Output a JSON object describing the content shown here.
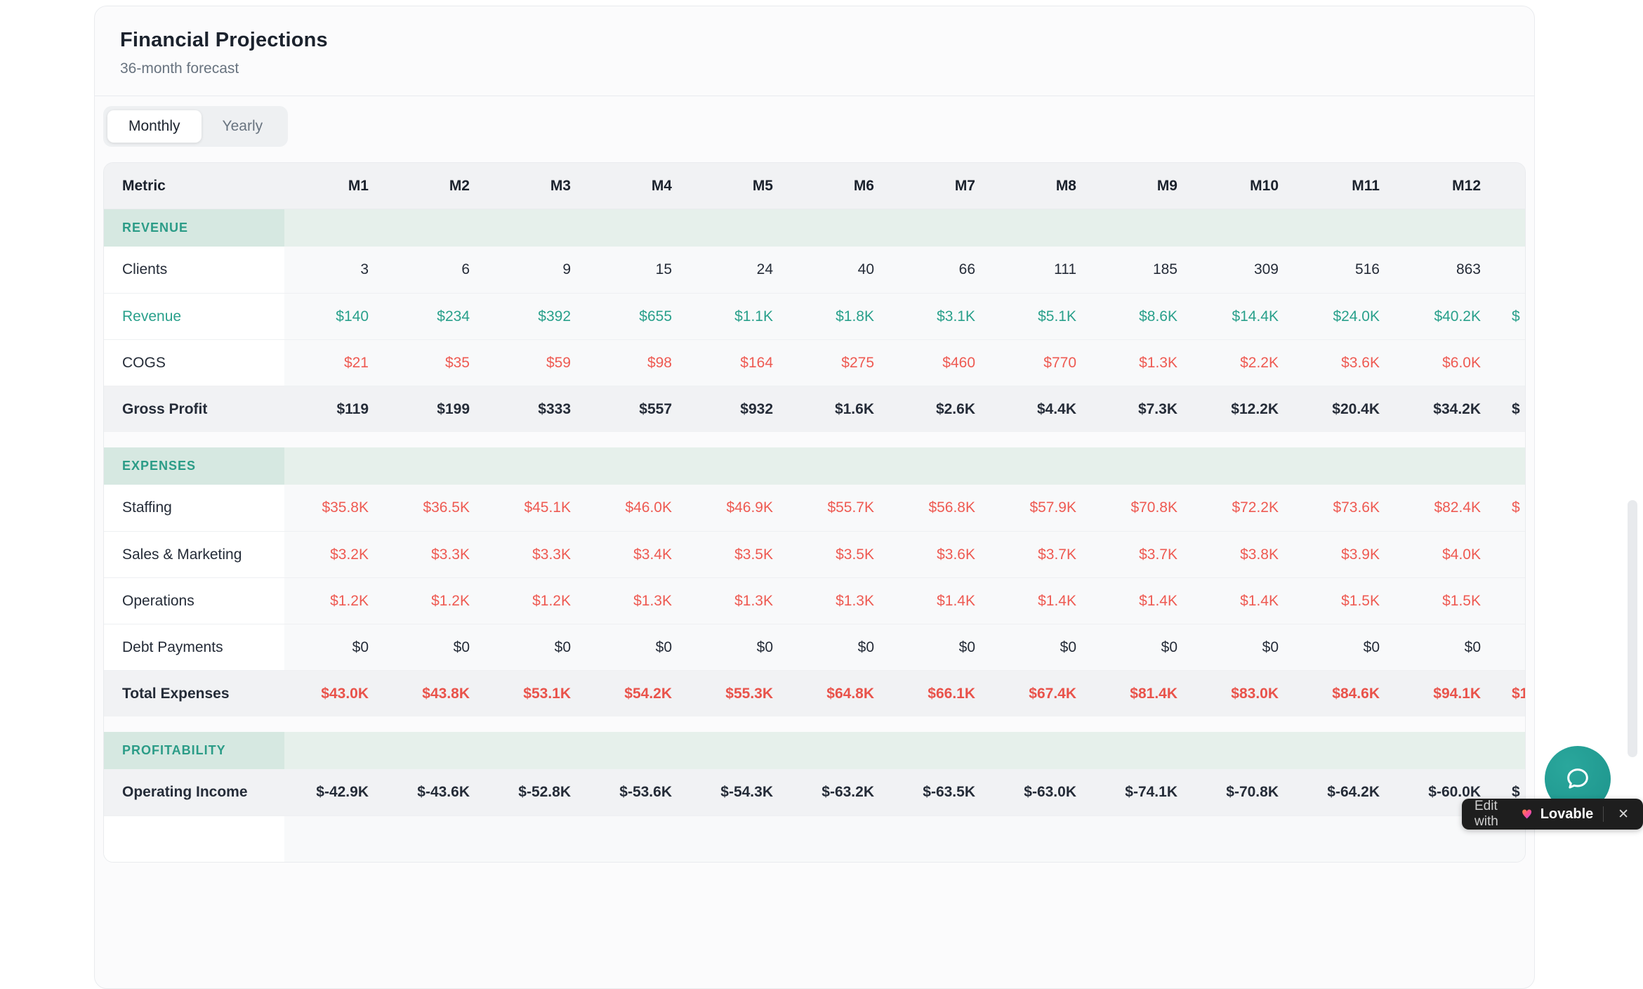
{
  "card": {
    "title": "Financial Projections",
    "subtitle": "36-month forecast"
  },
  "tabs": [
    {
      "label": "Monthly",
      "active": true
    },
    {
      "label": "Yearly",
      "active": false
    }
  ],
  "table": {
    "metric_header": "Metric",
    "months": [
      "M1",
      "M2",
      "M3",
      "M4",
      "M5",
      "M6",
      "M7",
      "M8",
      "M9",
      "M10",
      "M11",
      "M12"
    ],
    "sections": [
      {
        "label": "REVENUE",
        "rows": [
          {
            "label": "Clients",
            "style": "plain",
            "values": [
              "3",
              "6",
              "9",
              "15",
              "24",
              "40",
              "66",
              "111",
              "185",
              "309",
              "516",
              "863"
            ],
            "m13": ""
          },
          {
            "label": "Revenue",
            "style": "teal",
            "values": [
              "$140",
              "$234",
              "$392",
              "$655",
              "$1.1K",
              "$1.8K",
              "$3.1K",
              "$5.1K",
              "$8.6K",
              "$14.4K",
              "$24.0K",
              "$40.2K"
            ],
            "m13": "$"
          },
          {
            "label": "COGS",
            "style": "red",
            "values": [
              "$21",
              "$35",
              "$59",
              "$98",
              "$164",
              "$275",
              "$460",
              "$770",
              "$1.3K",
              "$2.2K",
              "$3.6K",
              "$6.0K"
            ],
            "m13": ""
          },
          {
            "label": "Gross Profit",
            "style": "bold",
            "values": [
              "$119",
              "$199",
              "$333",
              "$557",
              "$932",
              "$1.6K",
              "$2.6K",
              "$4.4K",
              "$7.3K",
              "$12.2K",
              "$20.4K",
              "$34.2K"
            ],
            "m13": "$"
          }
        ]
      },
      {
        "label": "EXPENSES",
        "rows": [
          {
            "label": "Staffing",
            "style": "red",
            "values": [
              "$35.8K",
              "$36.5K",
              "$45.1K",
              "$46.0K",
              "$46.9K",
              "$55.7K",
              "$56.8K",
              "$57.9K",
              "$70.8K",
              "$72.2K",
              "$73.6K",
              "$82.4K"
            ],
            "m13": "$"
          },
          {
            "label": "Sales & Marketing",
            "style": "red",
            "values": [
              "$3.2K",
              "$3.3K",
              "$3.3K",
              "$3.4K",
              "$3.5K",
              "$3.5K",
              "$3.6K",
              "$3.7K",
              "$3.7K",
              "$3.8K",
              "$3.9K",
              "$4.0K"
            ],
            "m13": ""
          },
          {
            "label": "Operations",
            "style": "red",
            "values": [
              "$1.2K",
              "$1.2K",
              "$1.2K",
              "$1.3K",
              "$1.3K",
              "$1.3K",
              "$1.4K",
              "$1.4K",
              "$1.4K",
              "$1.4K",
              "$1.5K",
              "$1.5K"
            ],
            "m13": ""
          },
          {
            "label": "Debt Payments",
            "style": "plain",
            "values": [
              "$0",
              "$0",
              "$0",
              "$0",
              "$0",
              "$0",
              "$0",
              "$0",
              "$0",
              "$0",
              "$0",
              "$0"
            ],
            "m13": ""
          },
          {
            "label": "Total Expenses",
            "style": "boldred",
            "values": [
              "$43.0K",
              "$43.8K",
              "$53.1K",
              "$54.2K",
              "$55.3K",
              "$64.8K",
              "$66.1K",
              "$67.4K",
              "$81.4K",
              "$83.0K",
              "$84.6K",
              "$94.1K"
            ],
            "m13": "$1"
          }
        ]
      },
      {
        "label": "PROFITABILITY",
        "rows": [
          {
            "label": "Operating Income",
            "style": "bold",
            "values": [
              "$-42.9K",
              "$-43.6K",
              "$-52.8K",
              "$-53.6K",
              "$-54.3K",
              "$-63.2K",
              "$-63.5K",
              "$-63.0K",
              "$-74.1K",
              "$-70.8K",
              "$-64.2K",
              "$-60.0K"
            ],
            "m13": "$"
          },
          {
            "label": "",
            "style": "plain",
            "values": [
              "",
              "",
              "",
              "",
              "",
              "",
              "",
              "",
              "",
              "",
              "",
              ""
            ],
            "m13": ""
          }
        ]
      }
    ]
  },
  "badge": {
    "prefix": "Edit with",
    "brand": "Lovable",
    "close": "✕"
  },
  "colors": {
    "accent_teal": "#29a08b",
    "negative_red": "#ee5a52",
    "section_bg": "#d6e8e1",
    "section_row_bg": "#e6f0eb",
    "summary_row_bg": "#f1f2f4",
    "chat_button": "#1f9d94",
    "badge_bg": "#1e1e1e"
  }
}
